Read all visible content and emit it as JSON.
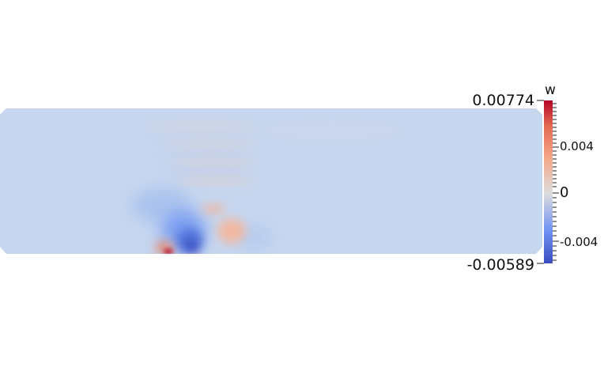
{
  "field": {
    "variable": "w",
    "max_label": "0.00774",
    "min_label": "-0.00589",
    "range": [
      -0.00589,
      0.00774
    ],
    "ticks": [
      {
        "value": 0.004,
        "label": "0.004"
      },
      {
        "value": 0,
        "label": "0"
      },
      {
        "value": -0.004,
        "label": "-0.004"
      }
    ],
    "colormap": "cool-to-warm",
    "colors": {
      "low": "#3b4cc0",
      "mid": "#dddddd",
      "high": "#b40426",
      "background_field": "#c6d6ef"
    }
  }
}
